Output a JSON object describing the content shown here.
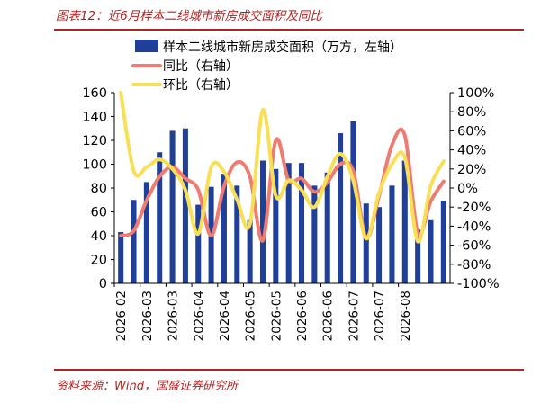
{
  "header": {
    "title": "图表12：近6月样本二线城市新房成交面积及同比"
  },
  "footer": {
    "source": "资料来源：Wind，国盛证券研究所"
  },
  "colors": {
    "bar": "#1f3f99",
    "yoy": "#ef7c70",
    "mom": "#f9df55",
    "accent": "#b22222"
  },
  "chart_data": {
    "type": "bar",
    "legend_position": "top-left",
    "grid": false,
    "y_left": {
      "ylim": [
        0,
        160
      ],
      "ticks": [
        0,
        20,
        40,
        60,
        80,
        100,
        120,
        140,
        160
      ]
    },
    "y_right": {
      "ylim": [
        -100,
        100
      ],
      "ticks": [
        -100,
        -80,
        -60,
        -40,
        -20,
        0,
        20,
        40,
        60,
        80,
        100
      ],
      "tick_labels": [
        "-100%",
        "-80%",
        "-60%",
        "-40%",
        "-20%",
        "0%",
        "20%",
        "40%",
        "60%",
        "80%",
        "100%"
      ]
    },
    "x_tick_labels": [
      "2026-02",
      "2026-03",
      "2026-03",
      "2026-04",
      "2026-04",
      "2026-05",
      "2026-05",
      "2026-06",
      "2026-06",
      "2026-07",
      "2026-07",
      "2026-08"
    ],
    "series": [
      {
        "name": "样本二线城市新房成交面积（万方，左轴）",
        "kind": "bar",
        "axis": "left",
        "values": [
          43,
          70,
          85,
          110,
          128,
          130,
          66,
          81,
          92,
          82,
          53,
          103,
          96,
          101,
          101,
          82,
          93,
          126,
          136,
          67,
          64,
          82,
          103,
          45,
          53,
          69
        ]
      },
      {
        "name": "同比（右轴）",
        "kind": "line",
        "axis": "right",
        "values": [
          -50,
          -45,
          -13,
          12,
          22,
          10,
          -2,
          -50,
          2,
          27,
          12,
          -55,
          50,
          8,
          10,
          -4,
          6,
          25,
          18,
          -52,
          -8,
          45,
          55,
          -47,
          -14,
          7
        ]
      },
      {
        "name": "环比（右轴）",
        "kind": "line",
        "axis": "right",
        "values": [
          100,
          18,
          22,
          30,
          20,
          -2,
          -48,
          22,
          17,
          -12,
          -38,
          82,
          -8,
          8,
          -2,
          -20,
          12,
          36,
          8,
          -53,
          -5,
          25,
          32,
          -56,
          2,
          28
        ]
      }
    ]
  }
}
